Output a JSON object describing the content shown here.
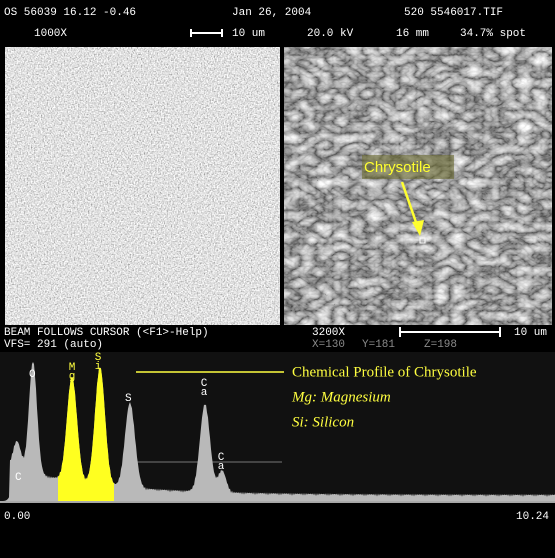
{
  "header": {
    "line1": [
      "OS 56039 16.12 -0.46",
      "Jan 26, 2004",
      "520 5546017.TIF"
    ],
    "line2": [
      "1000X",
      "10 um",
      "20.0 kV",
      "16 mm",
      "34.7% spot"
    ]
  },
  "micrograph": {
    "callout": "Chrysotile"
  },
  "status": {
    "line1": [
      "BEAM FOLLOWS CURSOR (<F1>-Help)",
      "3200X",
      "10 um"
    ],
    "line2": [
      "VFS= 291 (auto)",
      "X=130",
      "Y=181",
      "Z=198"
    ]
  },
  "spectrum": {
    "peak_labels": [
      "O",
      "Mg",
      "Si",
      "S",
      "Ca",
      "C",
      "Ca"
    ],
    "legend": {
      "title": "Chemical Profile of Chrysotile",
      "items": [
        "Mg: Magnesium",
        "Si: Silicon"
      ]
    },
    "axis": [
      "0.00",
      "10.24"
    ]
  }
}
